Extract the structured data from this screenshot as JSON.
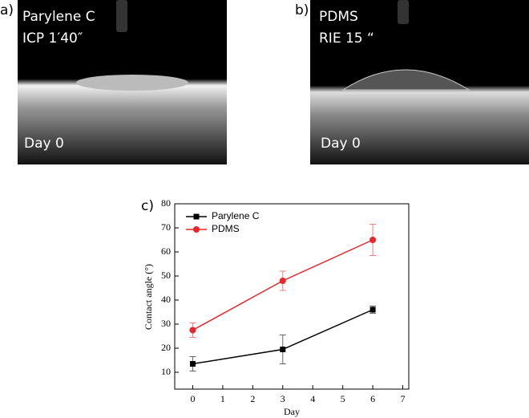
{
  "photos": [
    {
      "label": "a)",
      "lines": [
        "Parylene C",
        "ICP 1′40″"
      ],
      "caption": "Day 0"
    },
    {
      "label": "b)",
      "lines": [
        "PDMS",
        "RIE 15 “"
      ],
      "caption": "Day 0"
    }
  ],
  "chart_data": {
    "type": "line",
    "panel_label": "c)",
    "x_label": "Day",
    "y_label": "Contact angle (°)",
    "x": [
      0,
      3,
      6
    ],
    "xlim": [
      -0.6,
      7.2
    ],
    "xticks": [
      0,
      1,
      2,
      3,
      4,
      5,
      6,
      7
    ],
    "ylim": [
      3,
      80
    ],
    "yticks": [
      10,
      20,
      30,
      40,
      50,
      60,
      70,
      80
    ],
    "legend": "upper left",
    "series": [
      {
        "name": "Parylene C",
        "color": "#000000",
        "marker": "square",
        "values": [
          13.5,
          19.5,
          36
        ],
        "errors": [
          3,
          6,
          1.5
        ]
      },
      {
        "name": "PDMS",
        "color": "#e8262b",
        "marker": "circle",
        "values": [
          27.5,
          48,
          65
        ],
        "errors": [
          3,
          4,
          6.5
        ]
      }
    ]
  }
}
